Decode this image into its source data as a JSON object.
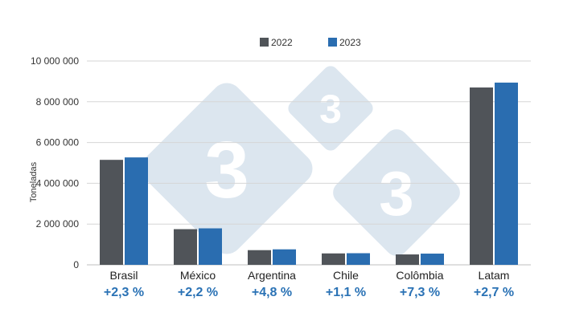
{
  "chart_data": {
    "type": "bar",
    "ylabel": "Toneladas",
    "ylim": [
      0,
      10000000
    ],
    "yticks": [
      0,
      2000000,
      4000000,
      6000000,
      8000000,
      10000000
    ],
    "ytick_labels": [
      "0",
      "2 000 000",
      "4 000 000",
      "6 000 000",
      "8 000 000",
      "10 000 000"
    ],
    "categories": [
      "Brasil",
      "México",
      "Argentina",
      "Chile",
      "Colômbia",
      "Latam"
    ],
    "series": [
      {
        "name": "2022",
        "color": "#505459",
        "values": [
          5150000,
          1750000,
          720000,
          560000,
          510000,
          8700000
        ]
      },
      {
        "name": "2023",
        "color": "#2a6db0",
        "values": [
          5270000,
          1790000,
          760000,
          570000,
          550000,
          8940000
        ]
      }
    ],
    "annotations": [
      "+2,3 %",
      "+2,2 %",
      "+4,8 %",
      "+1,1 %",
      "+7,3 %",
      "+2,7 %"
    ],
    "grid": true,
    "legend": "top-center"
  },
  "watermark": {
    "text": "3",
    "color": "#dce6ef"
  }
}
